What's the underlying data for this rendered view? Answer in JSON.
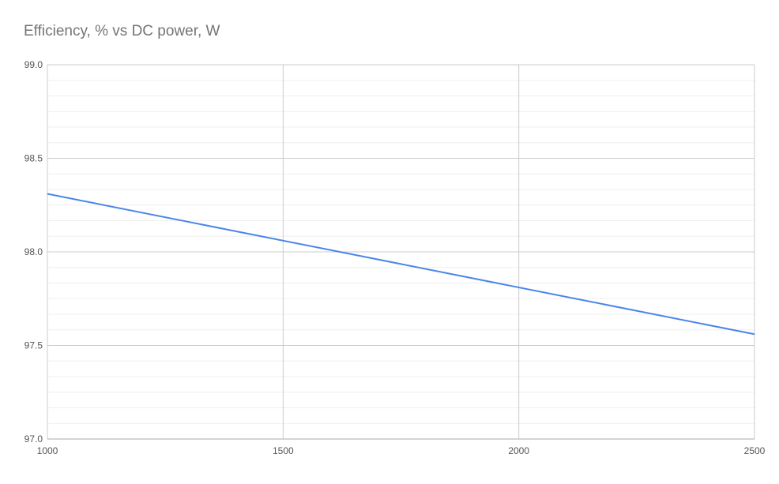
{
  "chart_data": {
    "type": "line",
    "title": "Efficiency, % vs DC power, W",
    "xlabel": "",
    "ylabel": "",
    "xlim": [
      1000,
      2500
    ],
    "ylim": [
      97.0,
      99.0
    ],
    "x_ticks": [
      1000,
      1500,
      2000,
      2500
    ],
    "y_ticks": [
      97.0,
      97.5,
      98.0,
      98.5,
      99.0
    ],
    "x_tick_labels": [
      "1000",
      "1500",
      "2000",
      "2500"
    ],
    "y_tick_labels": [
      "97.0",
      "97.5",
      "98.0",
      "98.5",
      "99.0"
    ],
    "grid": true,
    "minor_y_per_major": 6,
    "series": [
      {
        "color": "#4a86e8",
        "x": [
          1000,
          2500
        ],
        "y": [
          98.31,
          97.56
        ]
      }
    ]
  }
}
